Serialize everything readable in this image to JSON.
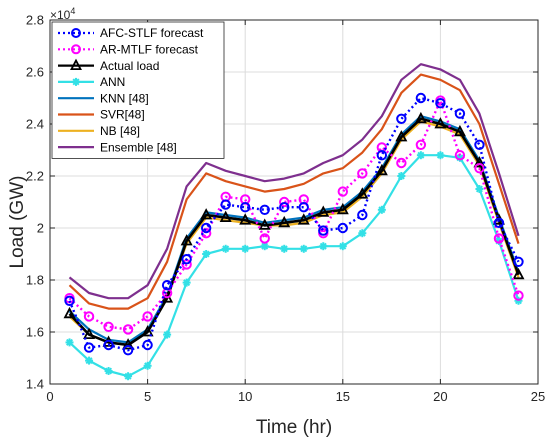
{
  "chart_data": {
    "type": "line",
    "title": "",
    "xlabel": "Time (hr)",
    "ylabel": "Load (GW)",
    "y_exponent_label": "×10",
    "y_exponent_power": "4",
    "xlim": [
      0,
      25
    ],
    "ylim": [
      14000,
      28000
    ],
    "xticks": [
      0,
      5,
      10,
      15,
      20,
      25
    ],
    "yticks": [
      14000,
      16000,
      18000,
      20000,
      22000,
      24000,
      26000,
      28000
    ],
    "ytick_labels": [
      "1.4",
      "1.6",
      "1.8",
      "2",
      "2.2",
      "2.4",
      "2.6",
      "2.8"
    ],
    "grid": true,
    "legend_position": "top-left",
    "x": [
      1,
      2,
      3,
      4,
      5,
      6,
      7,
      8,
      9,
      10,
      11,
      12,
      13,
      14,
      15,
      16,
      17,
      18,
      19,
      20,
      21,
      22,
      23,
      24
    ],
    "series": [
      {
        "name": "AFC-STLF forecast",
        "color": "#0000ff",
        "style": "dotted",
        "marker": "circle",
        "values": [
          17200,
          15400,
          15500,
          15300,
          15500,
          17800,
          18800,
          20000,
          20900,
          20800,
          20700,
          20800,
          20800,
          19900,
          20000,
          20500,
          22800,
          24200,
          25000,
          24800,
          24400,
          23200,
          20200,
          18700
        ]
      },
      {
        "name": "AR-MTLF forecast",
        "color": "#ff00ff",
        "style": "dotted",
        "marker": "circle",
        "values": [
          17300,
          16600,
          16200,
          16100,
          16600,
          17500,
          18600,
          19800,
          21200,
          21100,
          19600,
          21000,
          21100,
          19800,
          21400,
          22100,
          23100,
          22500,
          23200,
          24900,
          22800,
          22300,
          19600,
          17400
        ]
      },
      {
        "name": "Actual load",
        "color": "#000000",
        "style": "solid",
        "marker": "triangle",
        "values": [
          16700,
          15900,
          15600,
          15500,
          16000,
          17300,
          19500,
          20500,
          20400,
          20300,
          20100,
          20200,
          20300,
          20600,
          20700,
          21300,
          22200,
          23500,
          24200,
          24000,
          23700,
          22500,
          20300,
          18200
        ]
      },
      {
        "name": "ANN",
        "color": "#33e0e6",
        "style": "solid",
        "marker": "asterisk",
        "values": [
          15600,
          14900,
          14500,
          14300,
          14700,
          15900,
          17900,
          19000,
          19200,
          19200,
          19300,
          19200,
          19200,
          19300,
          19300,
          19800,
          20700,
          22000,
          22800,
          22800,
          22700,
          21500,
          19500,
          17200
        ]
      },
      {
        "name": "KNN [48]",
        "color": "#0072bd",
        "style": "solid",
        "marker": "none",
        "values": [
          16800,
          16100,
          15700,
          15600,
          16100,
          17400,
          19600,
          20600,
          20500,
          20400,
          20200,
          20300,
          20400,
          20700,
          20800,
          21400,
          22300,
          23600,
          24300,
          24100,
          23800,
          22600,
          20400,
          18300
        ]
      },
      {
        "name": "SVR[48]",
        "color": "#d95319",
        "style": "solid",
        "marker": "none",
        "values": [
          17800,
          17100,
          16900,
          16900,
          17300,
          18700,
          21100,
          22100,
          21800,
          21600,
          21400,
          21500,
          21700,
          22100,
          22300,
          22900,
          23800,
          25200,
          25900,
          25700,
          25300,
          24000,
          21700,
          19400
        ]
      },
      {
        "name": "NB [48]",
        "color": "#edb120",
        "style": "solid",
        "marker": "none",
        "values": [
          16600,
          15900,
          15600,
          15500,
          16000,
          17300,
          19400,
          20400,
          20300,
          20200,
          20100,
          20100,
          20200,
          20500,
          20600,
          21200,
          22100,
          23400,
          24100,
          23900,
          23600,
          22400,
          20200,
          18100
        ]
      },
      {
        "name": "Ensemble [48]",
        "color": "#7e2f8e",
        "style": "solid",
        "marker": "none",
        "values": [
          18100,
          17500,
          17300,
          17300,
          17800,
          19200,
          21600,
          22500,
          22200,
          22000,
          21800,
          21900,
          22100,
          22500,
          22800,
          23400,
          24300,
          25700,
          26300,
          26100,
          25700,
          24400,
          22100,
          19700
        ]
      }
    ]
  }
}
